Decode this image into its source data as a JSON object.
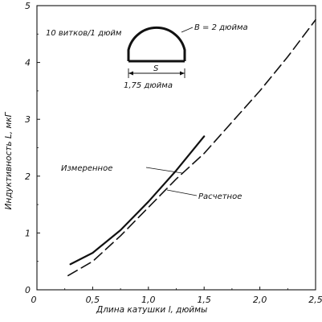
{
  "chart_data": {
    "type": "line",
    "xlabel": "Длина катушки l, дюймы",
    "ylabel": "Индуктивность L, мкГ",
    "xlim": [
      0,
      2.5
    ],
    "ylim": [
      0,
      5
    ],
    "x_ticks": [
      "0",
      "0,5",
      "1,0",
      "1,5",
      "2,0",
      "2,5"
    ],
    "y_ticks": [
      "0",
      "1",
      "2",
      "3",
      "4",
      "5"
    ],
    "grid": false,
    "series": [
      {
        "name": "Измеренное",
        "style": "solid",
        "x": [
          0.3,
          0.5,
          0.75,
          1.0,
          1.25,
          1.5
        ],
        "y": [
          0.45,
          0.65,
          1.05,
          1.55,
          2.1,
          2.7
        ]
      },
      {
        "name": "Расчетное",
        "style": "dashed",
        "x": [
          0.28,
          0.5,
          0.75,
          1.0,
          1.25,
          1.5,
          1.75,
          2.0,
          2.25,
          2.5
        ],
        "y": [
          0.25,
          0.5,
          0.95,
          1.45,
          1.95,
          2.4,
          2.95,
          3.5,
          4.1,
          4.75
        ]
      }
    ],
    "annotations": {
      "turns": "10 витков/1 дюйм",
      "diameter": "В = 2 дюйма",
      "s_label": "S",
      "base": "1,75 дюйма",
      "measured_label": "Измеренное",
      "calculated_label": "Расчетное"
    }
  }
}
